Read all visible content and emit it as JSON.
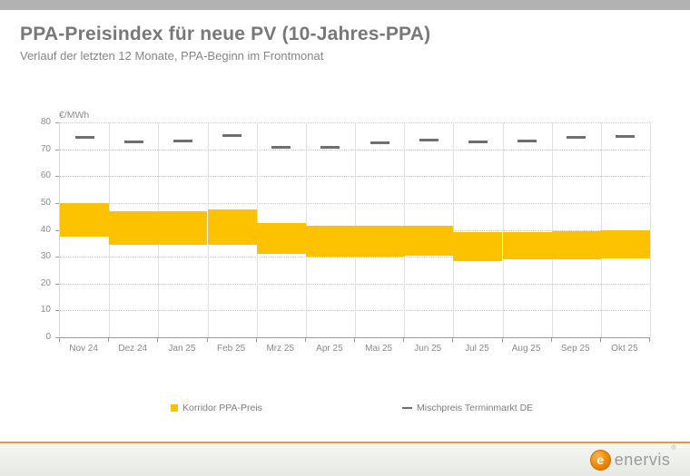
{
  "page": {
    "title": "PPA-Preisindex für neue PV (10-Jahres-PPA)",
    "subtitle": "Verlauf der letzten 12 Monate, PPA-Beginn im Frontmonat"
  },
  "chart_data": {
    "type": "bar",
    "subtype": "floating-range-bars-with-dash-markers",
    "title": "PPA-Preisindex für neue PV (10-Jahres-PPA)",
    "subtitle": "Verlauf der letzten 12 Monate, PPA-Beginn im Frontmonat",
    "ylabel": "€/MWh",
    "ylim": [
      0,
      80
    ],
    "yticks": [
      0,
      10,
      20,
      30,
      40,
      50,
      60,
      70,
      80
    ],
    "grid": true,
    "legend_position": "bottom",
    "categories": [
      "Nov 24",
      "Dez 24",
      "Jan 25",
      "Feb 25",
      "Mrz 25",
      "Apr 25",
      "Mai 25",
      "Jun 25",
      "Jul 25",
      "Aug 25",
      "Sep 25",
      "Okt 25"
    ],
    "series": [
      {
        "name": "Korridor PPA-Preis",
        "type": "range-bar",
        "color": "#FCC200",
        "low": [
          37.5,
          34.5,
          34.5,
          34.5,
          31.0,
          30.0,
          30.0,
          30.5,
          28.5,
          29.0,
          29.0,
          29.5
        ],
        "high": [
          50.0,
          47.0,
          47.0,
          47.5,
          42.5,
          41.5,
          41.5,
          41.5,
          39.0,
          39.0,
          39.5,
          40.0
        ]
      },
      {
        "name": "Mischpreis Terminmarkt DE",
        "type": "dash-marker",
        "color": "#6f6f6f",
        "values": [
          74.5,
          72.7,
          73.2,
          75.0,
          70.8,
          70.8,
          72.3,
          73.5,
          72.8,
          73.0,
          74.3,
          74.8
        ]
      }
    ]
  },
  "legend": {
    "items": [
      {
        "label": "Korridor PPA-Preis",
        "marker": "square",
        "color": "#FCC200"
      },
      {
        "label": "Mischpreis Terminmarkt DE",
        "marker": "dash",
        "color": "#6f6f6f"
      }
    ]
  },
  "footer": {
    "logo_mark": "e",
    "logo_text": "enervis",
    "registered": "®"
  },
  "colors": {
    "topbar": "#b2b2b2",
    "title_text": "#787878",
    "bar_yellow": "#FCC200",
    "dash_gray": "#6f6f6f",
    "footer_line_orange": "#E89B35",
    "logo_orange": "#ef8800"
  }
}
